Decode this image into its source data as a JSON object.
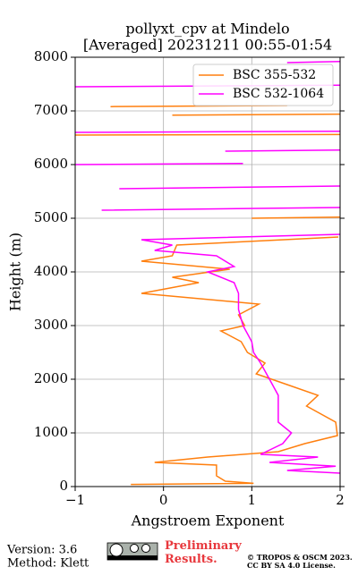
{
  "chart_data": {
    "type": "line",
    "title": "pollyxt_cpv at Mindelo",
    "subtitle": "[Averaged] 20231211 00:55-01:54",
    "x_label": "Angstroem Exponent",
    "y_label": "Height (m)",
    "xlim": [
      -1,
      2
    ],
    "xticks": [
      {
        "value": -1,
        "label": "−1"
      },
      0,
      1,
      2
    ],
    "ylim": [
      0,
      8000
    ],
    "yticks": [
      0,
      1000,
      2000,
      3000,
      4000,
      5000,
      6000,
      7000,
      8000
    ],
    "grid": true,
    "legend": "upper right",
    "series": [
      {
        "name": "BSC 355-532",
        "color": "#ff7f0e",
        "x": [
          -0.37,
          1.02,
          0.7,
          0.6,
          0.6,
          0.6,
          -0.1,
          0.5,
          1.3,
          1.6,
          1.97,
          1.95,
          1.62,
          1.75,
          1.4,
          1.05,
          1.15,
          0.95,
          0.88,
          0.65,
          0.92,
          0.85,
          1.08,
          -0.25,
          0.4,
          0.1,
          0.75,
          -0.25,
          0.1,
          0.15,
          1.98,
          null,
          1.0,
          2.0,
          null,
          -1,
          2.0,
          null,
          0.1,
          2.0,
          null,
          -0.6,
          1.4
        ],
        "values": [
          40,
          60,
          100,
          200,
          300,
          400,
          450,
          550,
          650,
          800,
          950,
          1200,
          1500,
          1700,
          1900,
          2100,
          2300,
          2500,
          2700,
          2900,
          3000,
          3200,
          3400,
          3600,
          3800,
          3900,
          4050,
          4200,
          4300,
          4500,
          4650,
          null,
          5000,
          5020,
          null,
          6550,
          6560,
          null,
          6920,
          6940,
          null,
          7080,
          7100
        ]
      },
      {
        "name": "BSC 532-1064",
        "color": "#ff00ff",
        "x": [
          2.0,
          1.4,
          1.95,
          1.2,
          1.75,
          1.1,
          1.35,
          1.45,
          1.3,
          1.3,
          1.3,
          1.2,
          1.1,
          1.02,
          1.0,
          0.9,
          0.85,
          0.85,
          0.8,
          0.5,
          0.8,
          0.6,
          -0.1,
          0.1,
          -0.25,
          2.0,
          null,
          -0.7,
          2.0,
          null,
          -0.5,
          2.0,
          null,
          -1,
          0.9,
          null,
          0.7,
          2.0,
          null,
          -1,
          2.0,
          null,
          -1,
          2.0,
          null,
          1.4,
          2.0
        ],
        "values": [
          250,
          300,
          380,
          450,
          550,
          600,
          800,
          1000,
          1200,
          1500,
          1700,
          2000,
          2300,
          2500,
          2700,
          3000,
          3300,
          3600,
          3800,
          4000,
          4100,
          4300,
          4400,
          4500,
          4600,
          4700,
          null,
          5150,
          5200,
          null,
          5550,
          5600,
          null,
          6000,
          6020,
          null,
          6250,
          6270,
          null,
          6600,
          6620,
          null,
          7450,
          7480,
          null,
          7900,
          7920
        ]
      }
    ]
  },
  "footer": {
    "version": "Version: 3.6",
    "method": "Method: Klett",
    "preliminary": "Preliminary Results.",
    "copyright": "© TROPOS & OSCM 2023.",
    "license": "CC BY SA 4.0 License."
  }
}
